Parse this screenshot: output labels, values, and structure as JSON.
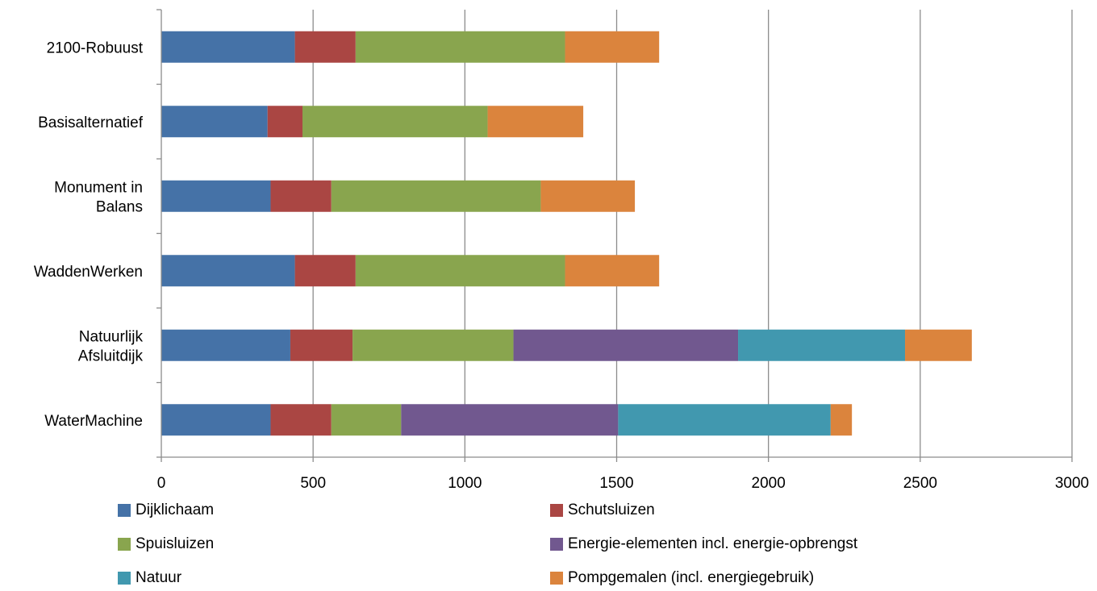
{
  "chart_data": {
    "type": "bar",
    "orientation": "horizontal",
    "stacked": true,
    "categories": [
      "2100-Robuust",
      "Basisalternatief",
      "Monument in Balans",
      "WaddenWerken",
      "Natuurlijk Afsluitdijk",
      "WaterMachine"
    ],
    "category_label_lines": [
      [
        "2100-Robuust"
      ],
      [
        "Basisalternatief"
      ],
      [
        "Monument in",
        "Balans"
      ],
      [
        "WaddenWerken"
      ],
      [
        "Natuurlijk",
        "Afsluitdijk"
      ],
      [
        "WaterMachine"
      ]
    ],
    "series": [
      {
        "name": "Dijklichaam",
        "color": "#4572A7",
        "values": [
          440,
          350,
          360,
          440,
          425,
          360
        ]
      },
      {
        "name": "Schutsluizen",
        "color": "#AA4643",
        "values": [
          200,
          115,
          200,
          200,
          205,
          200
        ]
      },
      {
        "name": "Spuisluizen",
        "color": "#89A54E",
        "values": [
          690,
          610,
          690,
          690,
          530,
          230
        ]
      },
      {
        "name": "Energie-elementen incl. energie-opbrengst",
        "color": "#71588F",
        "values": [
          0,
          0,
          0,
          0,
          740,
          715
        ]
      },
      {
        "name": "Natuur",
        "color": "#4198AF",
        "values": [
          0,
          0,
          0,
          0,
          550,
          700
        ]
      },
      {
        "name": "Pompgemalen (incl. energiegebruik)",
        "color": "#DB843D",
        "values": [
          310,
          315,
          310,
          310,
          220,
          70
        ]
      }
    ],
    "xlim": [
      0,
      3000
    ],
    "x_ticks": [
      "0",
      "500",
      "1000",
      "1500",
      "2000",
      "2500",
      "3000"
    ],
    "grid": "vertical",
    "legend": "bottom",
    "title": "",
    "xlabel": "",
    "ylabel": ""
  }
}
